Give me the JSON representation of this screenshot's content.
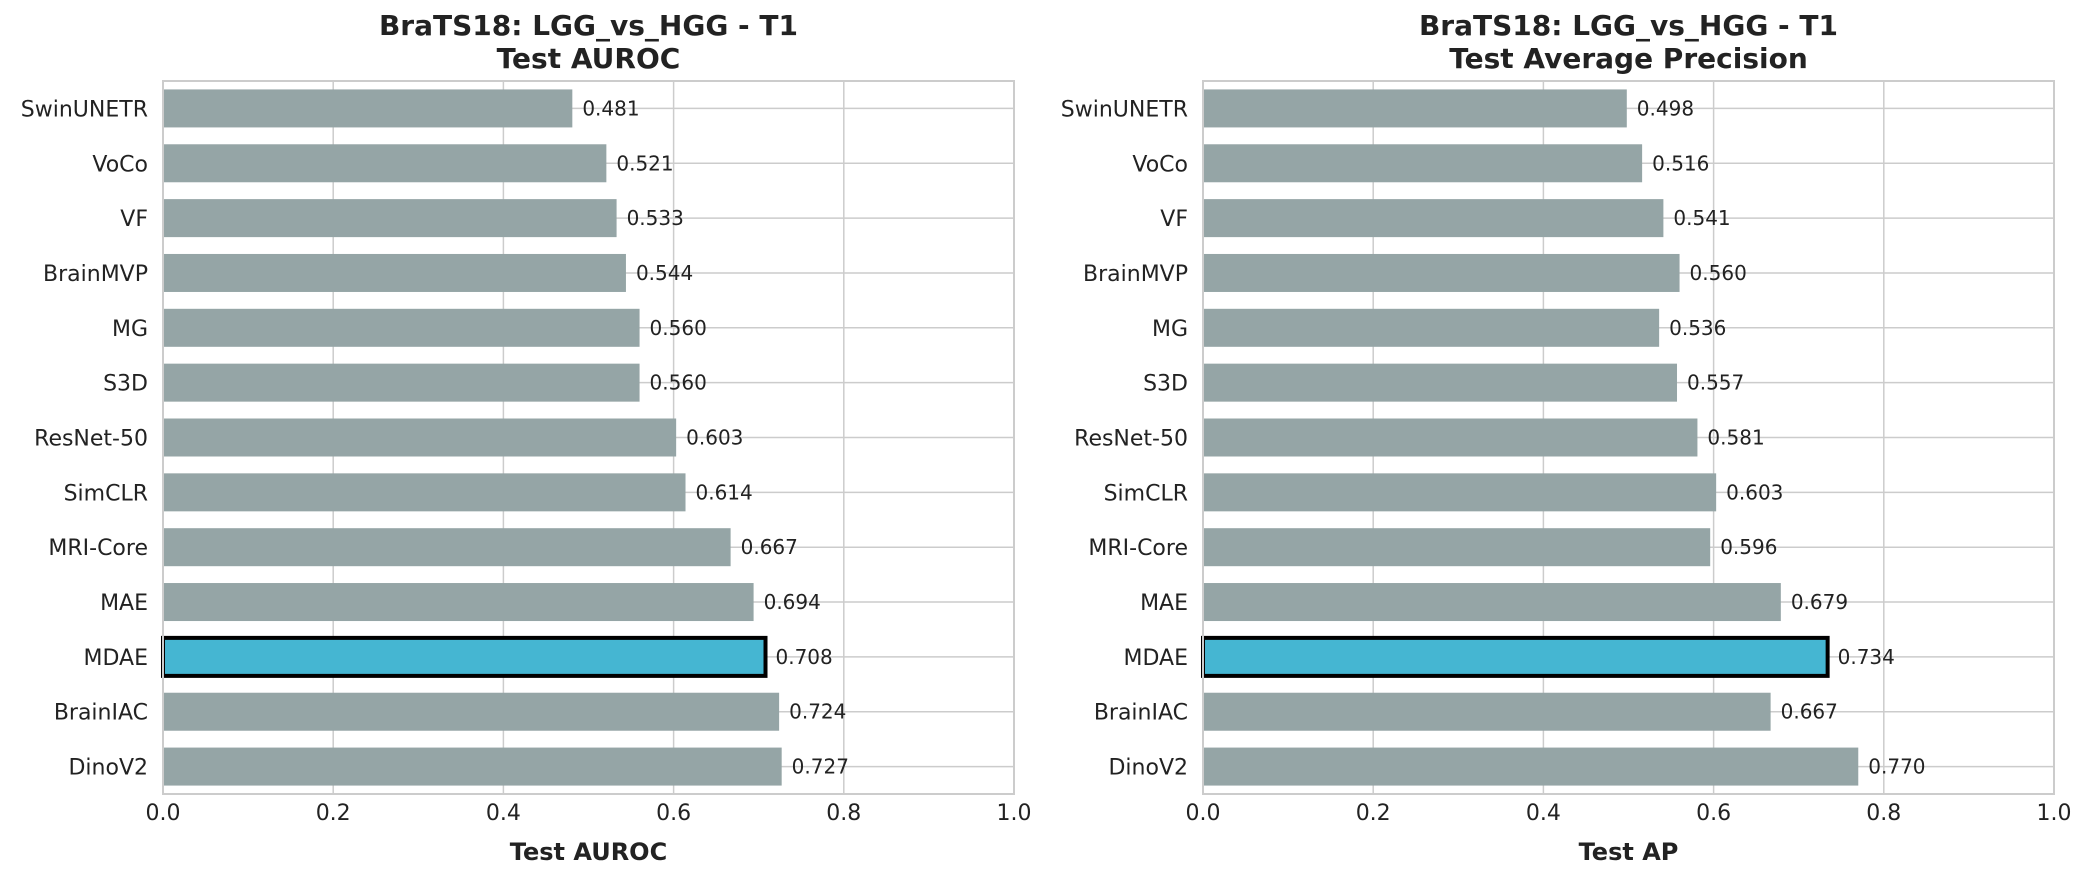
{
  "chart_data": [
    {
      "type": "bar",
      "orientation": "horizontal",
      "title": "BraTS18: LGG_vs_HGG - T1",
      "subtitle": "Test AUROC",
      "xlabel": "Test AUROC",
      "ylabel": "",
      "xlim": [
        0.0,
        1.0
      ],
      "xticks": [
        "0.0",
        "0.2",
        "0.4",
        "0.6",
        "0.8",
        "1.0"
      ],
      "grid": true,
      "categories": [
        "SwinUNETR",
        "VoCo",
        "VF",
        "BrainMVP",
        "MG",
        "S3D",
        "ResNet-50",
        "SimCLR",
        "MRI-Core",
        "MAE",
        "MDAE",
        "BrainIAC",
        "DinoV2"
      ],
      "values": [
        0.481,
        0.521,
        0.533,
        0.544,
        0.56,
        0.56,
        0.603,
        0.614,
        0.667,
        0.694,
        0.708,
        0.724,
        0.727
      ],
      "labels": [
        "0.481",
        "0.521",
        "0.533",
        "0.544",
        "0.560",
        "0.560",
        "0.603",
        "0.614",
        "0.667",
        "0.694",
        "0.708",
        "0.724",
        "0.727"
      ],
      "highlight": "MDAE"
    },
    {
      "type": "bar",
      "orientation": "horizontal",
      "title": "BraTS18: LGG_vs_HGG - T1",
      "subtitle": "Test Average Precision",
      "xlabel": "Test AP",
      "ylabel": "",
      "xlim": [
        0.0,
        1.0
      ],
      "xticks": [
        "0.0",
        "0.2",
        "0.4",
        "0.6",
        "0.8",
        "1.0"
      ],
      "grid": true,
      "categories": [
        "SwinUNETR",
        "VoCo",
        "VF",
        "BrainMVP",
        "MG",
        "S3D",
        "ResNet-50",
        "SimCLR",
        "MRI-Core",
        "MAE",
        "MDAE",
        "BrainIAC",
        "DinoV2"
      ],
      "values": [
        0.498,
        0.516,
        0.541,
        0.56,
        0.536,
        0.557,
        0.581,
        0.603,
        0.596,
        0.679,
        0.734,
        0.667,
        0.77
      ],
      "labels": [
        "0.498",
        "0.516",
        "0.541",
        "0.560",
        "0.536",
        "0.557",
        "0.581",
        "0.603",
        "0.596",
        "0.679",
        "0.734",
        "0.667",
        "0.770"
      ],
      "highlight": "MDAE"
    }
  ],
  "colors": {
    "bar": "#95a5a6",
    "highlight_bar": "#45b6d2",
    "highlight_border": "#000000",
    "grid": "#cccccc",
    "frame": "#cccccc",
    "text": "#222222"
  }
}
